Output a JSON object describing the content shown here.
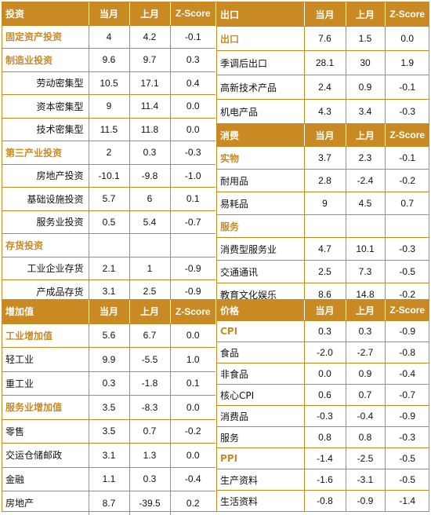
{
  "investment": {
    "title": "投资",
    "headers": [
      "当月",
      "上月",
      "Z-Score"
    ],
    "rows": [
      {
        "label": "固定资产投资",
        "style": "cat",
        "cur": "4",
        "prev": "4.2",
        "z": "-0.1"
      },
      {
        "label": "制造业投资",
        "style": "cat",
        "cur": "9.6",
        "prev": "9.7",
        "z": "0.3"
      },
      {
        "label": "劳动密集型",
        "style": "sub",
        "cur": "10.5",
        "prev": "17.1",
        "z": "0.4"
      },
      {
        "label": "资本密集型",
        "style": "sub",
        "cur": "9",
        "prev": "11.4",
        "z": "0.0"
      },
      {
        "label": "技术密集型",
        "style": "sub",
        "cur": "11.5",
        "prev": "11.8",
        "z": "0.0"
      },
      {
        "label": "第三产业投资",
        "style": "cat",
        "cur": "2",
        "prev": "0.3",
        "z": "-0.3"
      },
      {
        "label": "房地产投资",
        "style": "sub",
        "cur": "-10.1",
        "prev": "-9.8",
        "z": "-1.0"
      },
      {
        "label": "基础设施投资",
        "style": "sub",
        "cur": "5.7",
        "prev": "6",
        "z": "0.1"
      },
      {
        "label": "服务业投资",
        "style": "sub",
        "cur": "0.5",
        "prev": "5.4",
        "z": "-0.7"
      },
      {
        "label": "存货投资",
        "style": "cat",
        "cur": "",
        "prev": "",
        "z": ""
      },
      {
        "label": "工业企业存货",
        "style": "sub",
        "cur": "2.1",
        "prev": "1",
        "z": "-0.9"
      },
      {
        "label": "产成品存货",
        "style": "sub",
        "cur": "3.1",
        "prev": "2.5",
        "z": "-0.9"
      }
    ]
  },
  "exports": {
    "title": "出口",
    "headers": [
      "当月",
      "上月",
      "Z-Score"
    ],
    "rows": [
      {
        "label": "出口",
        "style": "cat",
        "cur": "7.6",
        "prev": "1.5",
        "z": "0.0"
      },
      {
        "label": "季调后出口",
        "style": "normal",
        "cur": "28.1",
        "prev": "30",
        "z": "1.9"
      },
      {
        "label": "高新技术产品",
        "style": "normal",
        "cur": "2.4",
        "prev": "0.9",
        "z": "-0.1"
      },
      {
        "label": "机电产品",
        "style": "normal",
        "cur": "4.3",
        "prev": "3.4",
        "z": "-0.3"
      }
    ]
  },
  "consumption": {
    "title": "消费",
    "headers": [
      "当月",
      "上月",
      "Z-Score"
    ],
    "rows": [
      {
        "label": "实物",
        "style": "cat",
        "cur": "3.7",
        "prev": "2.3",
        "z": "-0.1"
      },
      {
        "label": "耐用品",
        "style": "normal",
        "cur": "2.8",
        "prev": "-2.4",
        "z": "-0.2"
      },
      {
        "label": "易耗品",
        "style": "normal",
        "cur": "9",
        "prev": "4.5",
        "z": "0.7"
      },
      {
        "label": "服务",
        "style": "cat",
        "cur": "",
        "prev": "",
        "z": ""
      },
      {
        "label": "消费型服务业",
        "style": "normal",
        "cur": "4.7",
        "prev": "10.1",
        "z": "-0.3"
      },
      {
        "label": "交通通讯",
        "style": "normal",
        "cur": "2.5",
        "prev": "7.3",
        "z": "-0.5"
      },
      {
        "label": "教育文化娱乐",
        "style": "normal",
        "cur": "8.6",
        "prev": "14.8",
        "z": "-0.2"
      }
    ]
  },
  "value_added": {
    "title": "增加值",
    "headers": [
      "当月",
      "上月",
      "Z-Score"
    ],
    "rows": [
      {
        "label": "工业增加值",
        "style": "cat",
        "cur": "5.6",
        "prev": "6.7",
        "z": "0.0"
      },
      {
        "label": "轻工业",
        "style": "normal",
        "cur": "9.9",
        "prev": "-5.5",
        "z": "1.0"
      },
      {
        "label": "重工业",
        "style": "normal",
        "cur": "0.3",
        "prev": "-1.8",
        "z": "0.1"
      },
      {
        "label": "服务业增加值",
        "style": "cat",
        "cur": "3.5",
        "prev": "-8.3",
        "z": "0.0"
      },
      {
        "label": "零售",
        "style": "normal",
        "cur": "3.5",
        "prev": "0.7",
        "z": "-0.2"
      },
      {
        "label": "交运仓储邮政",
        "style": "normal",
        "cur": "3.1",
        "prev": "1.3",
        "z": "0.0"
      },
      {
        "label": "金融",
        "style": "normal",
        "cur": "1.1",
        "prev": "0.3",
        "z": "-0.4"
      },
      {
        "label": "房地产",
        "style": "normal",
        "cur": "8.7",
        "prev": "-39.5",
        "z": "0.2"
      }
    ]
  },
  "prices": {
    "title": "价格",
    "headers": [
      "当月",
      "上月",
      "Z-Score"
    ],
    "rows": [
      {
        "label": "CPI",
        "style": "cat",
        "cur": "0.3",
        "prev": "0.3",
        "z": "-0.9"
      },
      {
        "label": "食品",
        "style": "normal",
        "cur": "-2.0",
        "prev": "-2.7",
        "z": "-0.8"
      },
      {
        "label": "非食品",
        "style": "normal",
        "cur": "0.0",
        "prev": "0.9",
        "z": "-0.4"
      },
      {
        "label": "核心CPI",
        "style": "normal",
        "cur": "0.6",
        "prev": "0.7",
        "z": "-0.7"
      },
      {
        "label": "消费品",
        "style": "normal",
        "cur": "-0.3",
        "prev": "-0.4",
        "z": "-0.9"
      },
      {
        "label": "服务",
        "style": "normal",
        "cur": "0.8",
        "prev": "0.8",
        "z": "-0.3"
      },
      {
        "label": "PPI",
        "style": "cat",
        "cur": "-1.4",
        "prev": "-2.5",
        "z": "-0.5"
      },
      {
        "label": "生产资料",
        "style": "normal",
        "cur": "-1.6",
        "prev": "-3.1",
        "z": "-0.5"
      },
      {
        "label": "生活资料",
        "style": "normal",
        "cur": "-0.8",
        "prev": "-0.9",
        "z": "-1.4"
      }
    ]
  },
  "colors": {
    "accent": "#c98a24",
    "header_text": "#ffffff"
  }
}
